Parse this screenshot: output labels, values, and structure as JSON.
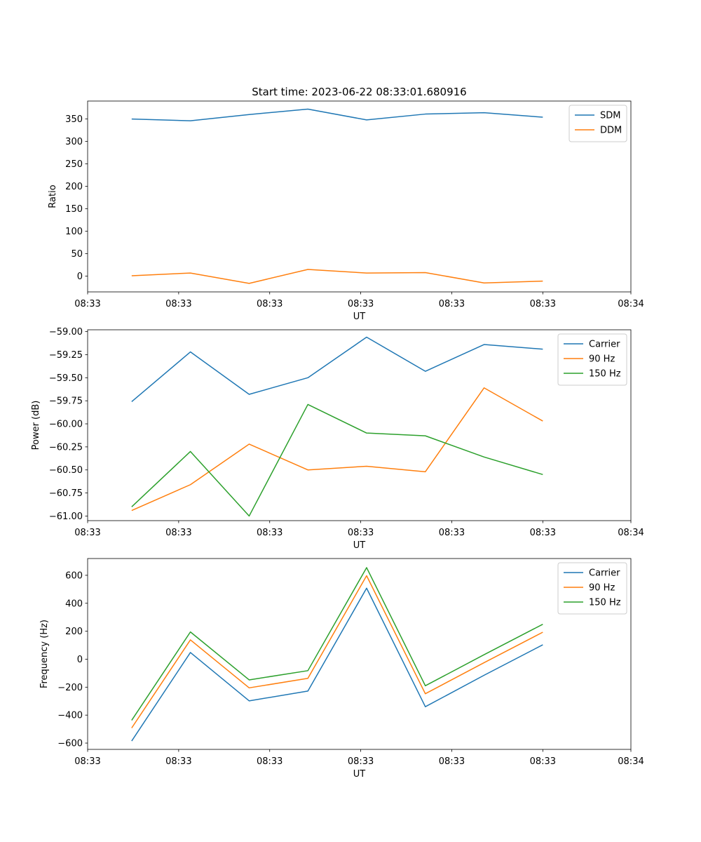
{
  "figure": {
    "title": "Start time: 2023-06-22 08:33:01.680916"
  },
  "chart_data": [
    {
      "type": "line",
      "xlabel": "UT",
      "ylabel": "Ratio",
      "x": [
        0,
        1,
        2,
        3,
        4,
        5,
        6,
        7
      ],
      "xlim": [
        -0.75,
        8.5
      ],
      "xticks": [
        -0.75,
        0.8,
        2.35,
        3.9,
        5.45,
        7.0,
        8.5
      ],
      "xtick_labels": [
        "08:33",
        "08:33",
        "08:33",
        "08:33",
        "08:33",
        "08:33",
        "08:34"
      ],
      "ylim": [
        -35,
        390
      ],
      "yticks": [
        0,
        50,
        100,
        150,
        200,
        250,
        300,
        350
      ],
      "ytick_labels": [
        "0",
        "50",
        "100",
        "150",
        "200",
        "250",
        "300",
        "350"
      ],
      "legend": "top-right",
      "series": [
        {
          "name": "SDM",
          "color": "#1f77b4",
          "values": [
            350,
            346,
            360,
            372,
            348,
            361,
            364,
            354
          ]
        },
        {
          "name": "DDM",
          "color": "#ff7f0e",
          "values": [
            1,
            7,
            -16,
            15,
            7,
            8,
            -15,
            -11
          ]
        }
      ]
    },
    {
      "type": "line",
      "xlabel": "UT",
      "ylabel": "Power (dB)",
      "x": [
        0,
        1,
        2,
        3,
        4,
        5,
        6,
        7
      ],
      "xlim": [
        -0.75,
        8.5
      ],
      "xticks": [
        -0.75,
        0.8,
        2.35,
        3.9,
        5.45,
        7.0,
        8.5
      ],
      "xtick_labels": [
        "08:33",
        "08:33",
        "08:33",
        "08:33",
        "08:33",
        "08:33",
        "08:34"
      ],
      "ylim": [
        -61.05,
        -58.98
      ],
      "yticks": [
        -61.0,
        -60.75,
        -60.5,
        -60.25,
        -60.0,
        -59.75,
        -59.5,
        -59.25,
        -59.0
      ],
      "ytick_labels": [
        "−61.00",
        "−60.75",
        "−60.50",
        "−60.25",
        "−60.00",
        "−59.75",
        "−59.50",
        "−59.25",
        "−59.00"
      ],
      "legend": "top-right",
      "series": [
        {
          "name": "Carrier",
          "color": "#1f77b4",
          "values": [
            -59.76,
            -59.22,
            -59.68,
            -59.5,
            -59.06,
            -59.43,
            -59.14,
            -59.19
          ]
        },
        {
          "name": "90 Hz",
          "color": "#ff7f0e",
          "values": [
            -60.94,
            -60.66,
            -60.22,
            -60.5,
            -60.46,
            -60.52,
            -59.61,
            -59.97
          ]
        },
        {
          "name": "150 Hz",
          "color": "#2ca02c",
          "values": [
            -60.9,
            -60.3,
            -61.0,
            -59.79,
            -60.1,
            -60.13,
            -60.36,
            -60.55
          ]
        }
      ]
    },
    {
      "type": "line",
      "xlabel": "UT",
      "ylabel": "Frequency (Hz)",
      "x": [
        0,
        1,
        2,
        3,
        4,
        5,
        6,
        7
      ],
      "xlim": [
        -0.75,
        8.5
      ],
      "xticks": [
        -0.75,
        0.8,
        2.35,
        3.9,
        5.45,
        7.0,
        8.5
      ],
      "xtick_labels": [
        "08:33",
        "08:33",
        "08:33",
        "08:33",
        "08:33",
        "08:33",
        "08:34"
      ],
      "ylim": [
        -645,
        720
      ],
      "yticks": [
        -600,
        -400,
        -200,
        0,
        200,
        400,
        600
      ],
      "ytick_labels": [
        "−600",
        "−400",
        "−200",
        "0",
        "200",
        "400",
        "600"
      ],
      "legend": "top-right",
      "series": [
        {
          "name": "Carrier",
          "color": "#1f77b4",
          "values": [
            -585,
            48,
            -298,
            -228,
            508,
            -340,
            -115,
            103
          ]
        },
        {
          "name": "90 Hz",
          "color": "#ff7f0e",
          "values": [
            -492,
            138,
            -205,
            -137,
            597,
            -247,
            -25,
            193
          ]
        },
        {
          "name": "150 Hz",
          "color": "#2ca02c",
          "values": [
            -437,
            195,
            -148,
            -82,
            655,
            -190,
            32,
            250
          ]
        }
      ]
    }
  ]
}
